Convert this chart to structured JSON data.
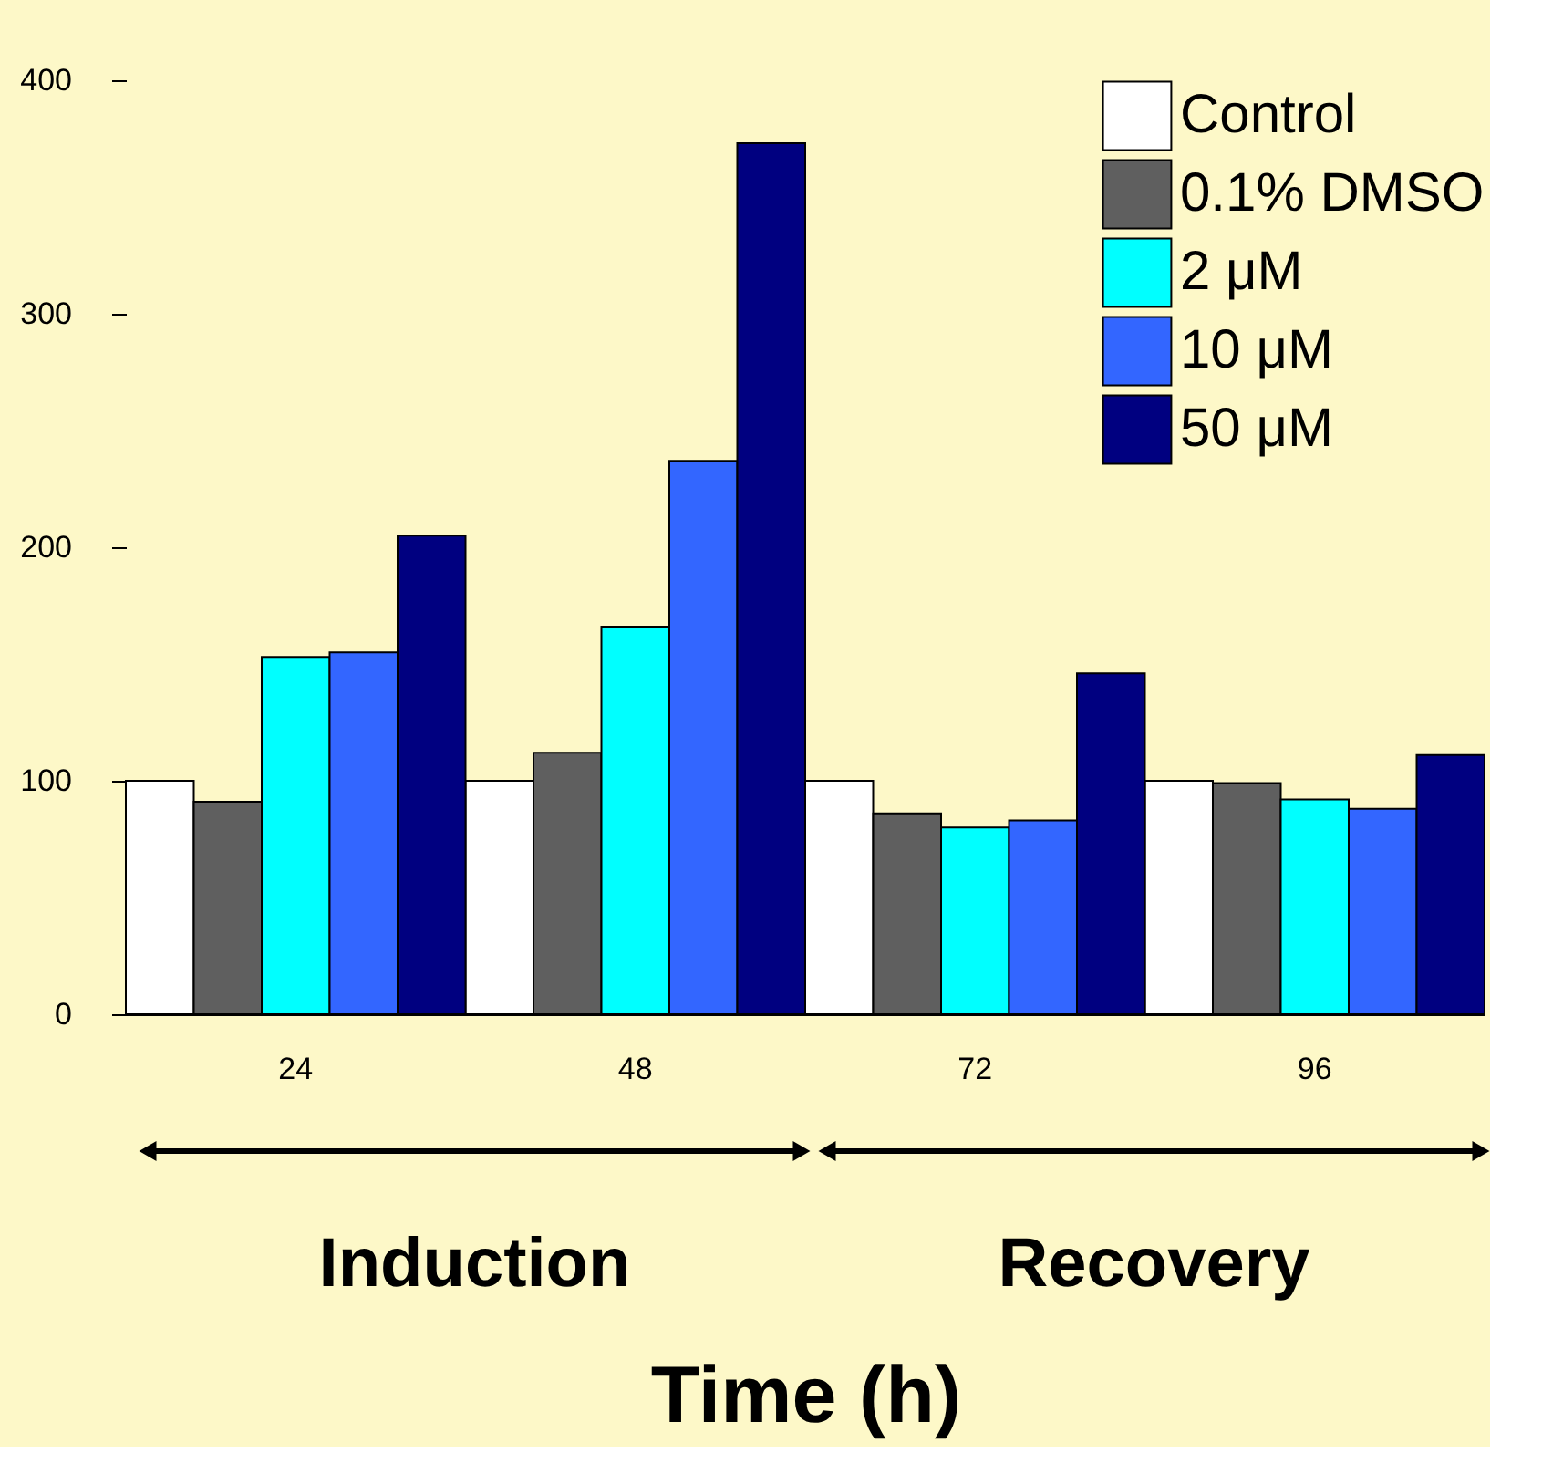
{
  "chart_data": {
    "type": "bar",
    "xlabel": "Time (h)",
    "categories": [
      "24",
      "48",
      "72",
      "96"
    ],
    "series": [
      {
        "name": "Control",
        "color": "#ffffff",
        "values": [
          100,
          100,
          100,
          100
        ]
      },
      {
        "name": "0.1% DMSO",
        "color": "#5f5f5f",
        "values": [
          91,
          112,
          86,
          99
        ]
      },
      {
        "name": "2 μM",
        "color": "#00ffff",
        "values": [
          153,
          166,
          80,
          92
        ]
      },
      {
        "name": "10 μM",
        "color": "#3366ff",
        "values": [
          155,
          237,
          83,
          88
        ]
      },
      {
        "name": "50 μM",
        "color": "#000080",
        "values": [
          205,
          373,
          146,
          111
        ]
      }
    ],
    "ylim": [
      0,
      400
    ],
    "yticks": [
      0,
      100,
      200,
      300,
      400
    ],
    "grid": false,
    "legend": "top right",
    "annotations": [
      "Induction",
      "Recovery"
    ]
  }
}
